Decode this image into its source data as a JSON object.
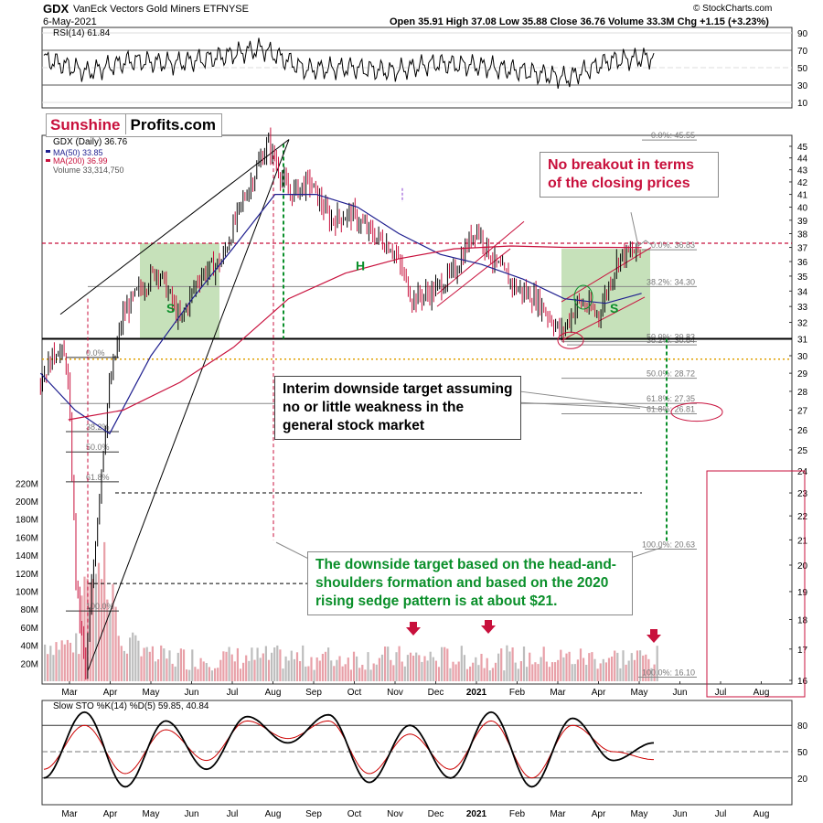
{
  "header": {
    "symbol": "GDX",
    "name": "VanEck Vectors Gold Miners ETF",
    "exchange": "NYSE",
    "date": "6-May-2021",
    "ohlc": "Open 35.91  High 37.08  Low 35.88  Close 36.76  Volume 33.3M  Chg +1.15 (+3.23%)",
    "watermark": "© StockCharts.com"
  },
  "rsi_label": "RSI(14) 61.84",
  "legend": {
    "main": "GDX (Daily) 36.76",
    "ma50": "MA(50) 33.85",
    "ma200": "MA(200) 36.99",
    "volume": "Volume 33,314,750"
  },
  "logo": {
    "part1": "Sunshine",
    "part2": "Profits.com"
  },
  "annotations": {
    "top": "No breakout in terms of the closing prices",
    "middle": "Interim downside target assuming no or little weakness in the general stock market",
    "bottom": "The downside target based on the head-and-shoulders formation and based on the 2020 rising sedge pattern is at about $21."
  },
  "colors": {
    "price_up": "#000000",
    "price_down": "#c8103c",
    "ma50": "#1f1f8f",
    "ma200": "#c8103c",
    "green_zone": "#bcdcae",
    "stoch_k": "#000000",
    "stoch_d": "#cc0000"
  },
  "chart_data": [
    {
      "type": "line",
      "title": "RSI(14) 61.84",
      "ylim": [
        0,
        100
      ],
      "y_ticks": [
        10,
        30,
        50,
        70,
        90
      ],
      "x": [
        "Mar",
        "Apr",
        "May",
        "Jun",
        "Jul",
        "Aug",
        "Sep",
        "Oct",
        "Nov",
        "Dec",
        "2021",
        "Feb",
        "Mar",
        "Apr",
        "May"
      ],
      "series": [
        {
          "values": [
            60,
            45,
            58,
            55,
            62,
            72,
            48,
            50,
            46,
            55,
            52,
            46,
            38,
            58,
            62
          ]
        }
      ]
    },
    {
      "type": "line",
      "title": "GDX (Daily) 36.76",
      "y_scale": "log",
      "ylim": [
        16,
        46
      ],
      "y_ticks": [
        16,
        17,
        18,
        19,
        20,
        21,
        22,
        23,
        24,
        25,
        26,
        27,
        28,
        29,
        30,
        31,
        32,
        33,
        34,
        35,
        36,
        37,
        38,
        39,
        40,
        41,
        42,
        43,
        44,
        45
      ],
      "x_ticks": [
        "Mar",
        "Apr",
        "May",
        "Jun",
        "Jul",
        "Aug",
        "Sep",
        "Oct",
        "Nov",
        "Dec",
        "2021",
        "Feb",
        "Mar",
        "Apr",
        "May",
        "Jun",
        "Jul",
        "Aug"
      ],
      "series": [
        {
          "name": "GDX (Daily) 36.76",
          "x": [
            "Feb 20",
            "Mar 2",
            "Mar 9",
            "Mar 16",
            "Mar 23",
            "Apr 1",
            "Apr 9",
            "Apr 20",
            "May 1",
            "May 15",
            "Jun 1",
            "Jun 15",
            "Jul 1",
            "Jul 15",
            "Aug 5",
            "Aug 20",
            "Sep 5",
            "Sep 20",
            "Oct 5",
            "Oct 20",
            "Nov 5",
            "Nov 20",
            "Dec 5",
            "Dec 20",
            "Jan 6",
            "Jan 20",
            "Feb 5",
            "Feb 20",
            "Mar 8",
            "Mar 20",
            "Apr 5",
            "Apr 20",
            "May 6"
          ],
          "values": [
            28.6,
            30.5,
            29.5,
            19.0,
            16.2,
            22.0,
            27.8,
            32.5,
            34.0,
            35.5,
            32.0,
            35.0,
            36.0,
            40.0,
            45.3,
            41.0,
            42.0,
            39.0,
            39.5,
            38.0,
            37.0,
            33.5,
            34.0,
            35.2,
            38.5,
            35.8,
            34.2,
            33.5,
            31.3,
            33.3,
            32.5,
            36.4,
            36.76
          ]
        },
        {
          "name": "MA(50) 33.85",
          "x": [
            "Feb 20",
            "Mar 15",
            "Apr 10",
            "May 10",
            "Jun 10",
            "Jul 10",
            "Aug 10",
            "Sep 10",
            "Oct 10",
            "Nov 10",
            "Dec 10",
            "Jan 10",
            "Feb 10",
            "Mar 10",
            "Apr 10",
            "May 6"
          ],
          "values": [
            29.0,
            27.0,
            25.8,
            30.0,
            33.5,
            37.0,
            41.0,
            41.0,
            40.0,
            38.0,
            36.5,
            35.8,
            34.8,
            33.5,
            33.2,
            33.85
          ]
        },
        {
          "name": "MA(200) 36.99",
          "x": [
            "Mar 10",
            "Apr 20",
            "Jun 1",
            "Jul 10",
            "Aug 20",
            "Oct 1",
            "Nov 10",
            "Dec 20",
            "Feb 1",
            "Mar 10",
            "Apr 10",
            "May 6"
          ],
          "values": [
            26.5,
            27.0,
            28.5,
            30.5,
            33.5,
            35.2,
            36.2,
            36.9,
            37.1,
            37.0,
            37.0,
            36.99
          ]
        }
      ],
      "fibonacci": [
        {
          "label": "0.0%: 45.55",
          "value": 45.55
        },
        {
          "label": "0.0%: 36.83",
          "value": 36.83
        },
        {
          "label": "38.2%: 34.30",
          "value": 34.3
        },
        {
          "label": "50.0%: 30.83",
          "value": 30.83
        },
        {
          "label": "38.2%: 30.64",
          "value": 30.64
        },
        {
          "label": "50.0%: 28.72",
          "value": 28.72
        },
        {
          "label": "61.8%: 27.35",
          "value": 27.35
        },
        {
          "label": "61.8%: 26.81",
          "value": 26.81
        },
        {
          "label": "100.0%: 20.63",
          "value": 20.63
        },
        {
          "label": "100.0%: 16.10",
          "value": 16.1
        }
      ],
      "left_fib_labels": [
        "0.0%",
        "38.2%",
        "50.0%",
        "61.8%",
        "100.0%"
      ],
      "markers": [
        "S",
        "H",
        "S"
      ],
      "volume": {
        "name": "Volume 33,314,750",
        "y_ticks": [
          "20M",
          "40M",
          "60M",
          "80M",
          "100M",
          "120M",
          "140M",
          "160M",
          "180M",
          "200M",
          "220M"
        ],
        "ylim": [
          0,
          220
        ]
      }
    },
    {
      "type": "line",
      "title": "Slow STO %K(14) %D(5) 59.85, 40.84",
      "ylim": [
        0,
        100
      ],
      "y_ticks": [
        20,
        50,
        80
      ],
      "x_ticks": [
        "Mar",
        "Apr",
        "May",
        "Jun",
        "Jul",
        "Aug",
        "Sep",
        "Oct",
        "Nov",
        "Dec",
        "2021",
        "Feb",
        "Mar",
        "Apr",
        "May",
        "Jun",
        "Jul",
        "Aug"
      ],
      "series": [
        {
          "name": "%K(14)",
          "values": [
            20,
            95,
            10,
            85,
            30,
            90,
            60,
            92,
            15,
            80,
            20,
            95,
            10,
            88,
            40,
            60
          ]
        },
        {
          "name": "%D(5)",
          "values": [
            30,
            80,
            25,
            75,
            40,
            85,
            65,
            85,
            25,
            70,
            30,
            85,
            20,
            80,
            50,
            41
          ]
        }
      ]
    }
  ]
}
